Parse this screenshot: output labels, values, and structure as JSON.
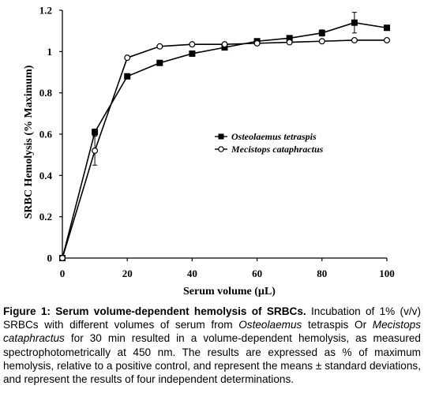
{
  "chart_data": {
    "type": "line",
    "title": "",
    "xlabel": "Serum volume (µL)",
    "ylabel": "SRBC Hemolysis (% Maximum)",
    "xlim": [
      0,
      100
    ],
    "ylim": [
      0,
      1.2
    ],
    "x_ticks": [
      "0",
      "20",
      "40",
      "60",
      "80",
      "100"
    ],
    "y_ticks": [
      "0",
      "0.2",
      "0.4",
      "0.6",
      "0.8",
      "1",
      "1.2"
    ],
    "x_tick_values": [
      0,
      20,
      40,
      60,
      80,
      100
    ],
    "y_tick_values": [
      0,
      0.2,
      0.4,
      0.6,
      0.8,
      1.0,
      1.2
    ],
    "grid": false,
    "legend_position": "center-right",
    "series": [
      {
        "name": "Osteolaemus tetraspis",
        "marker": "filled-square",
        "color": "#000000",
        "x": [
          0,
          10,
          20,
          30,
          40,
          50,
          60,
          70,
          80,
          90,
          100
        ],
        "y": [
          0,
          0.61,
          0.88,
          0.945,
          0.99,
          1.02,
          1.05,
          1.065,
          1.09,
          1.14,
          1.115
        ],
        "err": [
          0,
          0.015,
          0,
          0,
          0,
          0,
          0,
          0,
          0.015,
          0.05,
          0
        ]
      },
      {
        "name": "Mecistops cataphractus",
        "marker": "open-circle",
        "color": "#000000",
        "x": [
          0,
          10,
          20,
          30,
          40,
          50,
          60,
          70,
          80,
          90,
          100
        ],
        "y": [
          0,
          0.52,
          0.97,
          1.025,
          1.035,
          1.035,
          1.04,
          1.045,
          1.05,
          1.055,
          1.055
        ],
        "err": [
          0,
          0.07,
          0,
          0,
          0,
          0,
          0,
          0,
          0,
          0,
          0
        ]
      }
    ]
  },
  "caption": {
    "label": "Figure 1: Serum volume-dependent hemolysis of SRBCs.",
    "text_1": " Incubation of 1% (v/v) SRBCs with different volumes of serum from ",
    "species_1": "Osteolaemus",
    "text_2": " tetraspis Or ",
    "species_2": "Mecistops cataphractus",
    "text_3": " for 30 min resulted in a volume-dependent hemolysis, as measured spectrophotometrically at 450 nm.  The results are expressed as % of maximum hemolysis, relative to a positive control, and represent the means ± standard deviations, and represent the results of four independent determinations."
  }
}
